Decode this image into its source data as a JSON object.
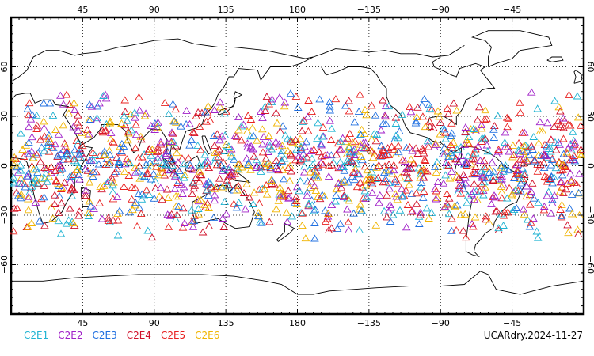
{
  "map": {
    "projection": "cylindrical-equidistant",
    "center_longitude": 180,
    "lat_range": [
      -90,
      90
    ],
    "grid": "dotted",
    "top_lon_labels": [
      "45",
      "90",
      "135",
      "180",
      "−135",
      "−90",
      "−45"
    ],
    "bottom_lon_labels": [
      "45",
      "90",
      "135",
      "180",
      "−135",
      "−90",
      "−45"
    ],
    "left_lat_labels": [
      "60",
      "30",
      "0",
      "−30",
      "−60"
    ],
    "right_lat_labels": [
      "60",
      "30",
      "0",
      "−30",
      "−60"
    ],
    "marker_shape": "open-triangle",
    "observation_lat_band": [
      -45,
      45
    ]
  },
  "legend": [
    {
      "label": "C2E1",
      "color": "#1fb3d2"
    },
    {
      "label": "C2E2",
      "color": "#a020c8"
    },
    {
      "label": "C2E3",
      "color": "#1f6fe0"
    },
    {
      "label": "C2E4",
      "color": "#d0102a"
    },
    {
      "label": "C2E5",
      "color": "#e8201f"
    },
    {
      "label": "C2E6",
      "color": "#f0b400"
    }
  ],
  "stamp": "UCARdry.2024-11-27"
}
